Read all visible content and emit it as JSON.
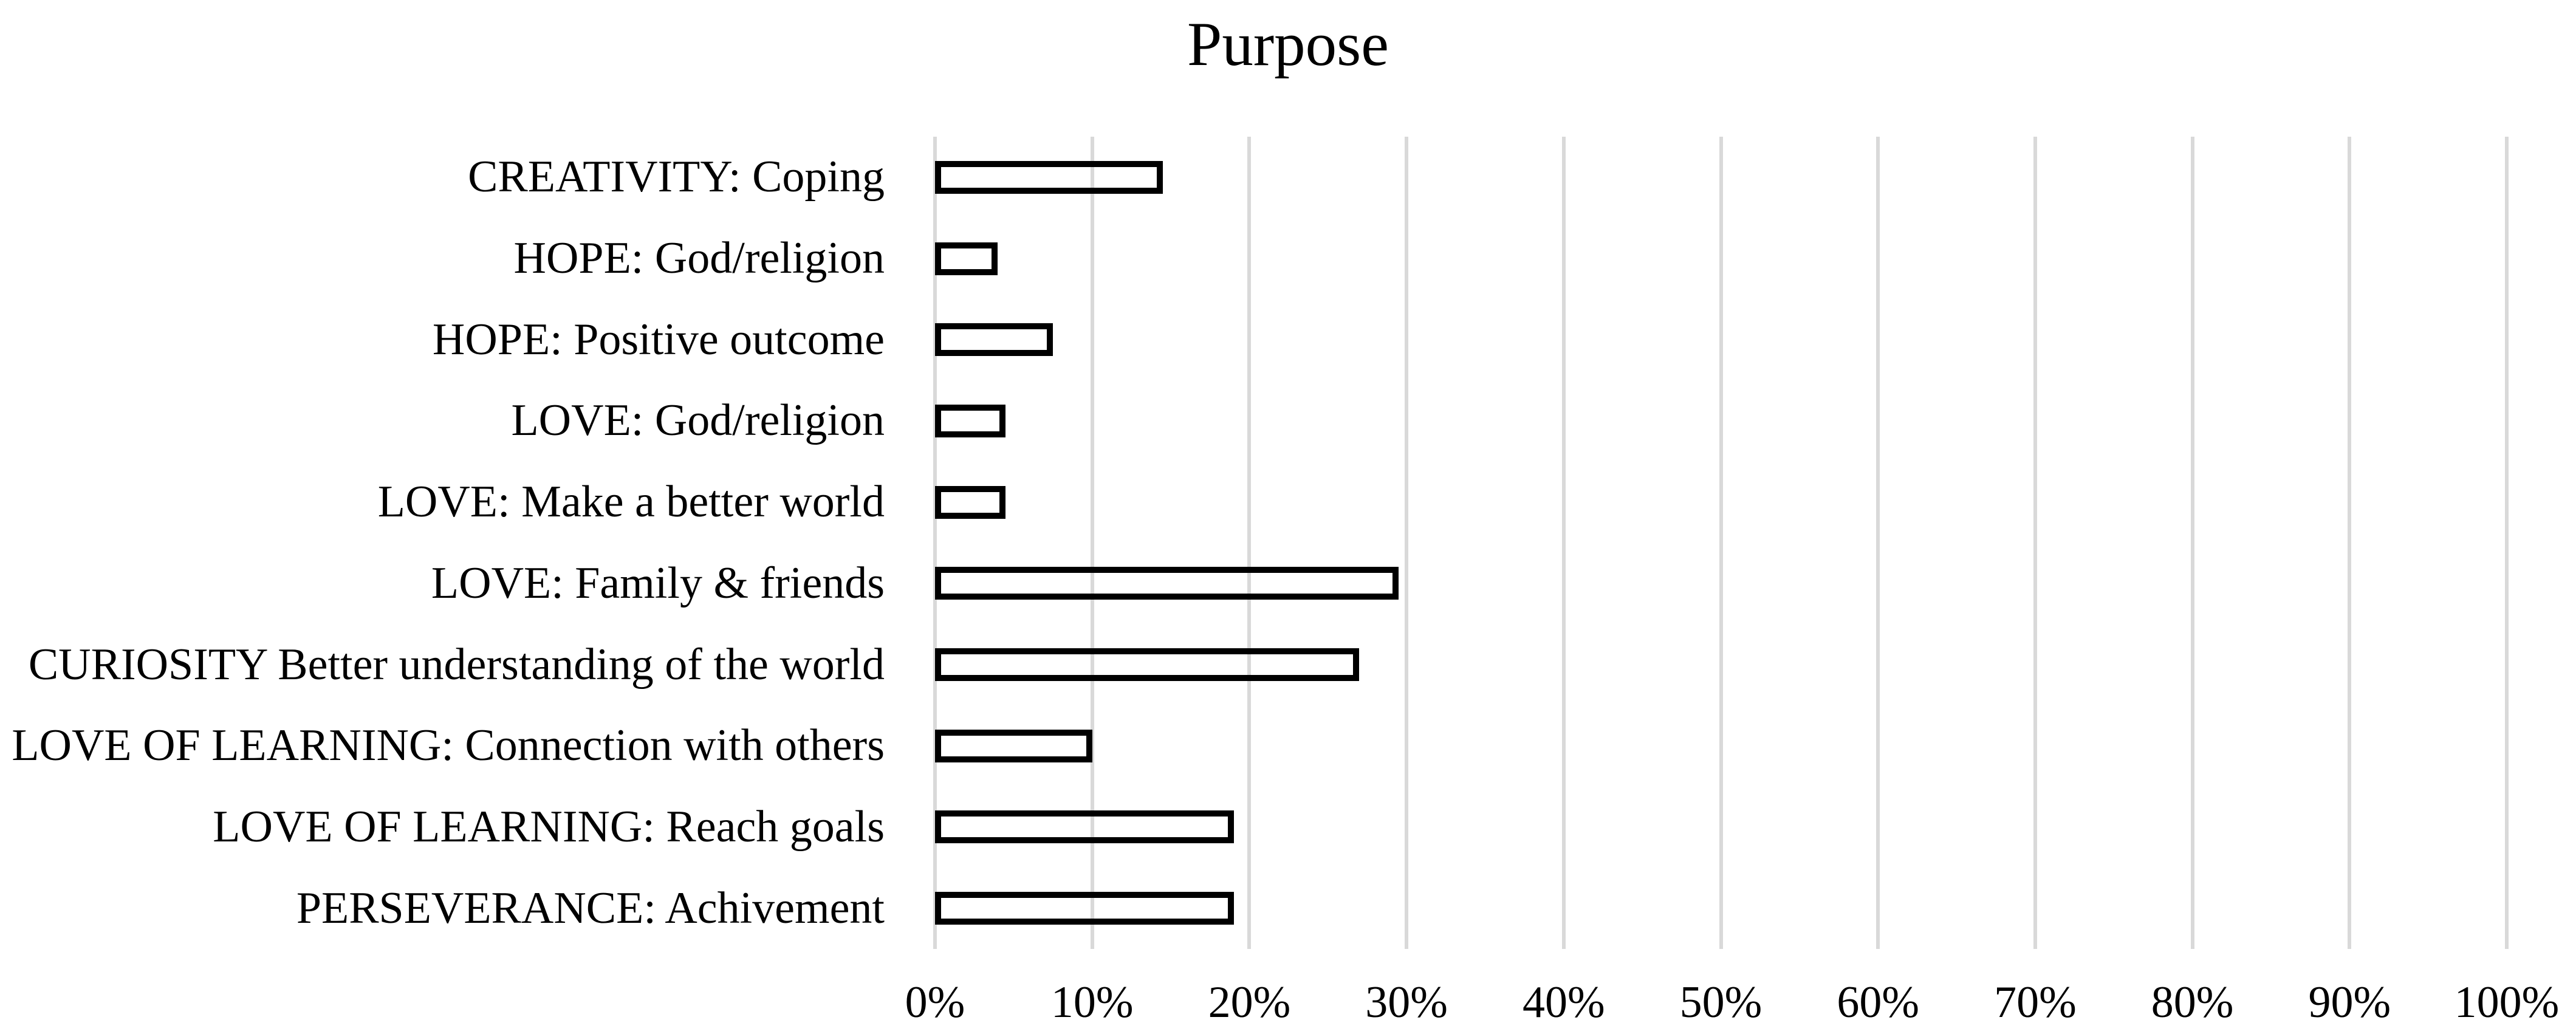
{
  "chart_data": {
    "type": "bar",
    "orientation": "horizontal",
    "title": "Purpose",
    "categories": [
      "CREATIVITY: Coping",
      "HOPE: God/religion",
      "HOPE: Positive outcome",
      "LOVE: God/religion",
      "LOVE: Make a better world",
      "LOVE: Family & friends",
      "CURIOSITY Better understanding of the world",
      "LOVE OF LEARNING: Connection with others",
      "LOVE OF LEARNING: Reach goals",
      "PERSEVERANCE: Achivement"
    ],
    "values": [
      14.5,
      4,
      7.5,
      4.5,
      4.5,
      29.5,
      27,
      10,
      19,
      19
    ],
    "value_unit": "%",
    "xlabel": "",
    "ylabel": "",
    "xlim": [
      0,
      100
    ],
    "x_tick_labels": [
      "0%",
      "10%",
      "20%",
      "30%",
      "40%",
      "50%",
      "60%",
      "70%",
      "80%",
      "90%",
      "100%"
    ],
    "grid": "vertical-only",
    "legend": "none",
    "colors": {
      "bar_fill": "none",
      "bar_border": "#000000",
      "gridline": "#d9d9d9",
      "text": "#000000",
      "background": "#ffffff"
    }
  }
}
